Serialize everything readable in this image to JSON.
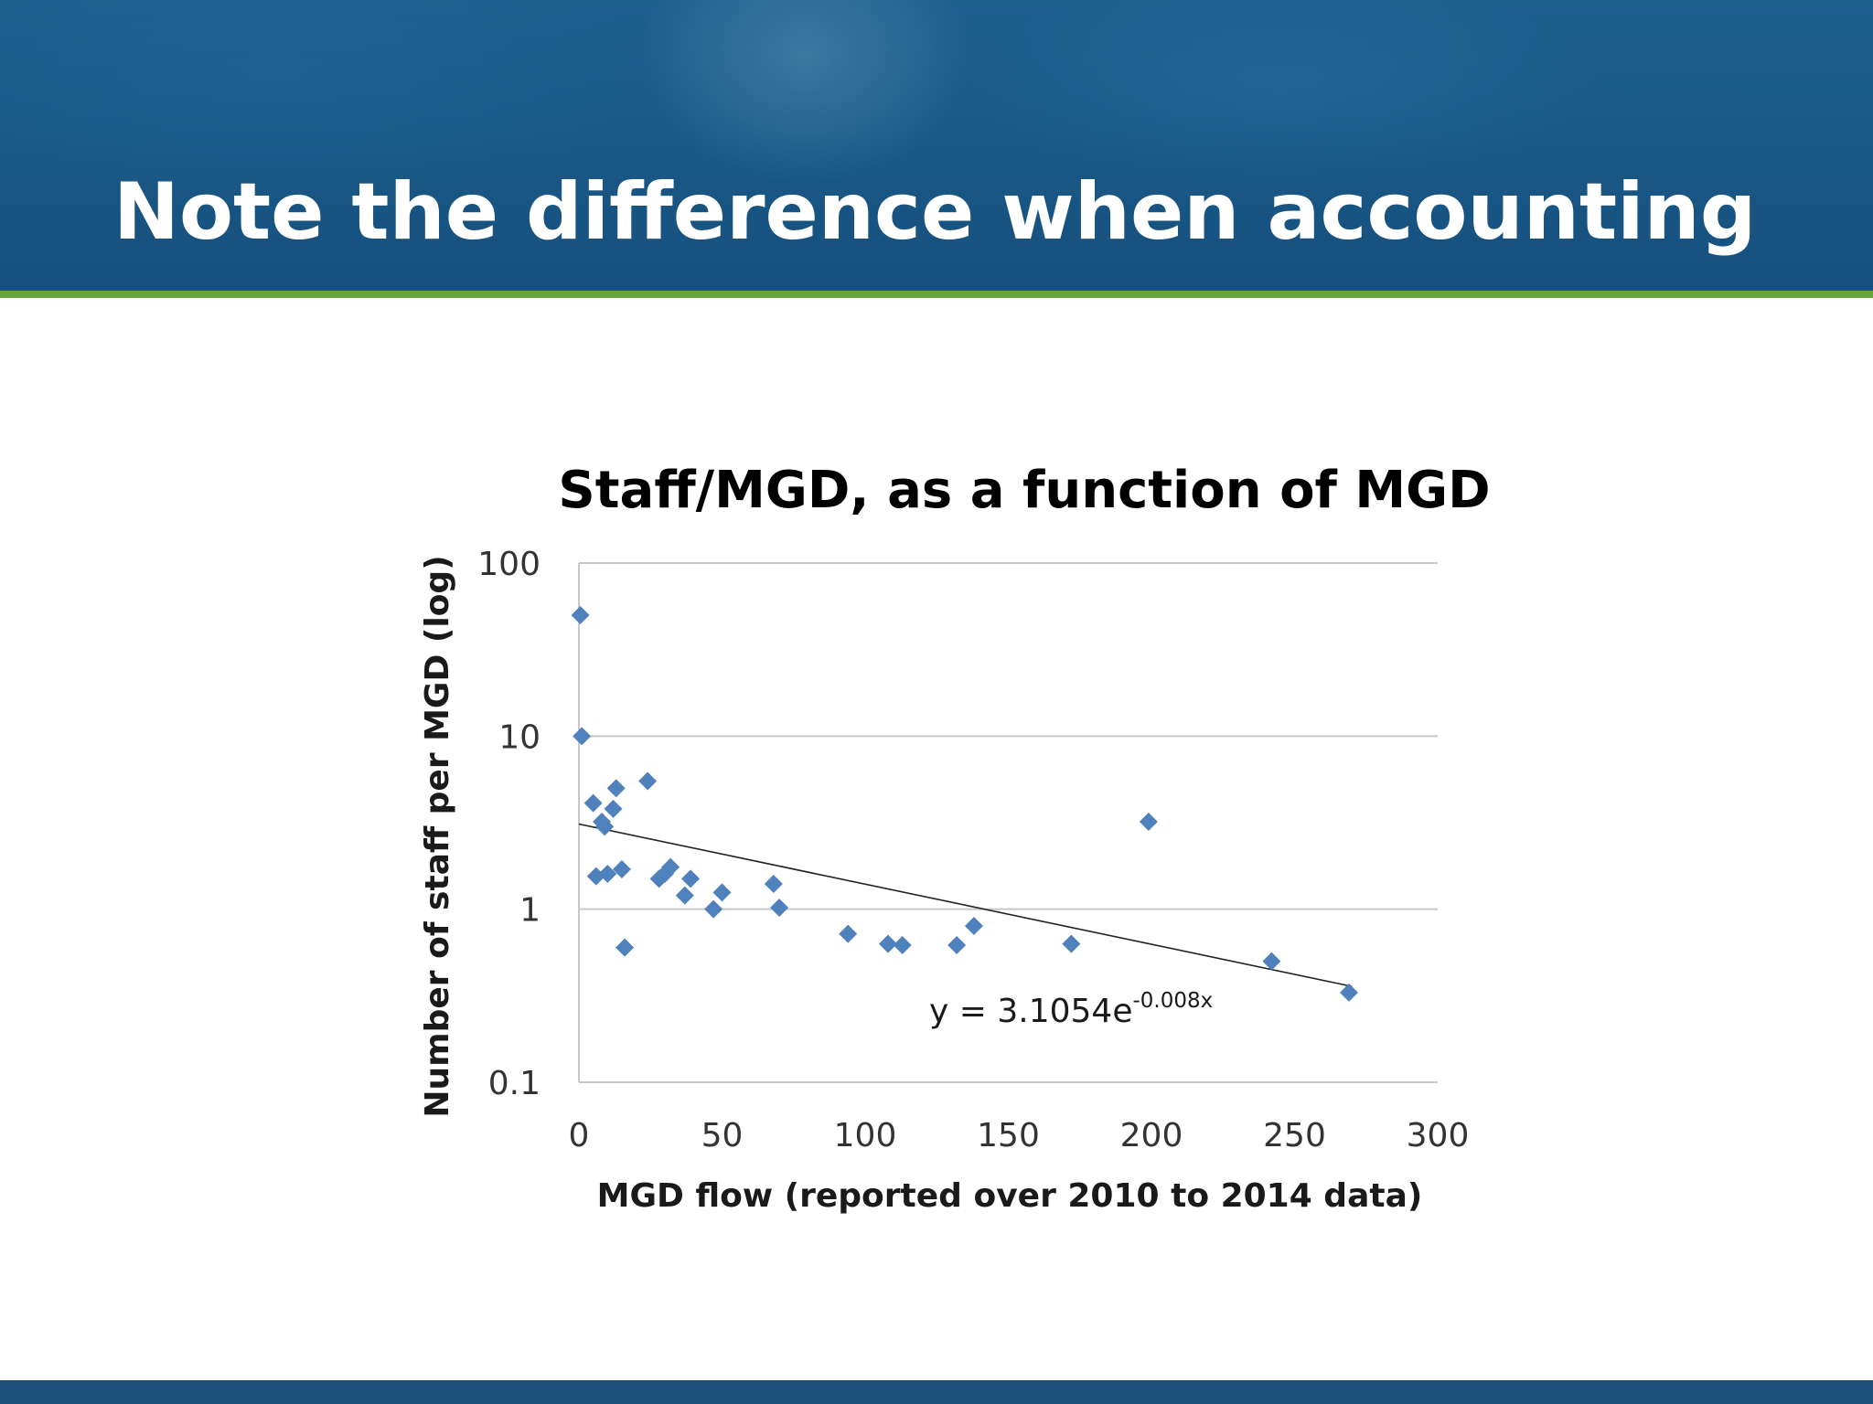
{
  "slide": {
    "title": "Note the difference when accounting for economies of scale",
    "colors": {
      "header_blue": "#1b5a88",
      "accent_green": "#6aa33c",
      "footer_blue": "#1c4f7a",
      "marker": "#4f81bd"
    }
  },
  "chart_data": {
    "type": "scatter",
    "title": "Staff/MGD, as a function of MGD",
    "xlabel": "MGD flow (reported over 2010 to 2014 data)",
    "ylabel": "Number of staff per MGD (log)",
    "xlim": [
      0,
      300
    ],
    "ylim": [
      0.1,
      100
    ],
    "y_scale": "log",
    "x_ticks": [
      0,
      50,
      100,
      150,
      200,
      250,
      300
    ],
    "y_ticks": [
      0.1,
      1,
      10,
      100
    ],
    "x_tick_labels": [
      "0",
      "50",
      "100",
      "150",
      "200",
      "250",
      "300"
    ],
    "y_tick_labels": [
      "0.1",
      "1",
      "10",
      "100"
    ],
    "grid": "horizontal",
    "legend": "none",
    "series": [
      {
        "marker": "diamond",
        "x": [
          0.5,
          1,
          5,
          6,
          8,
          9,
          10,
          12,
          13,
          15,
          16,
          24,
          28,
          30,
          32,
          37,
          39,
          47,
          50,
          68,
          70,
          94,
          108,
          113,
          132,
          138,
          172,
          199,
          242,
          269
        ],
        "y": [
          50,
          10,
          4.1,
          1.55,
          3.2,
          3.0,
          1.6,
          3.8,
          5.0,
          1.7,
          0.6,
          5.5,
          1.5,
          1.6,
          1.75,
          1.2,
          1.5,
          1.0,
          1.25,
          1.4,
          1.02,
          0.72,
          0.63,
          0.62,
          0.62,
          0.8,
          0.63,
          3.2,
          0.5,
          0.33
        ]
      }
    ],
    "trendline": {
      "type": "exponential",
      "a": 3.1054,
      "b": -0.008,
      "equation_label_main": "y = 3.1054e",
      "equation_label_exp": "-0.008x"
    }
  }
}
